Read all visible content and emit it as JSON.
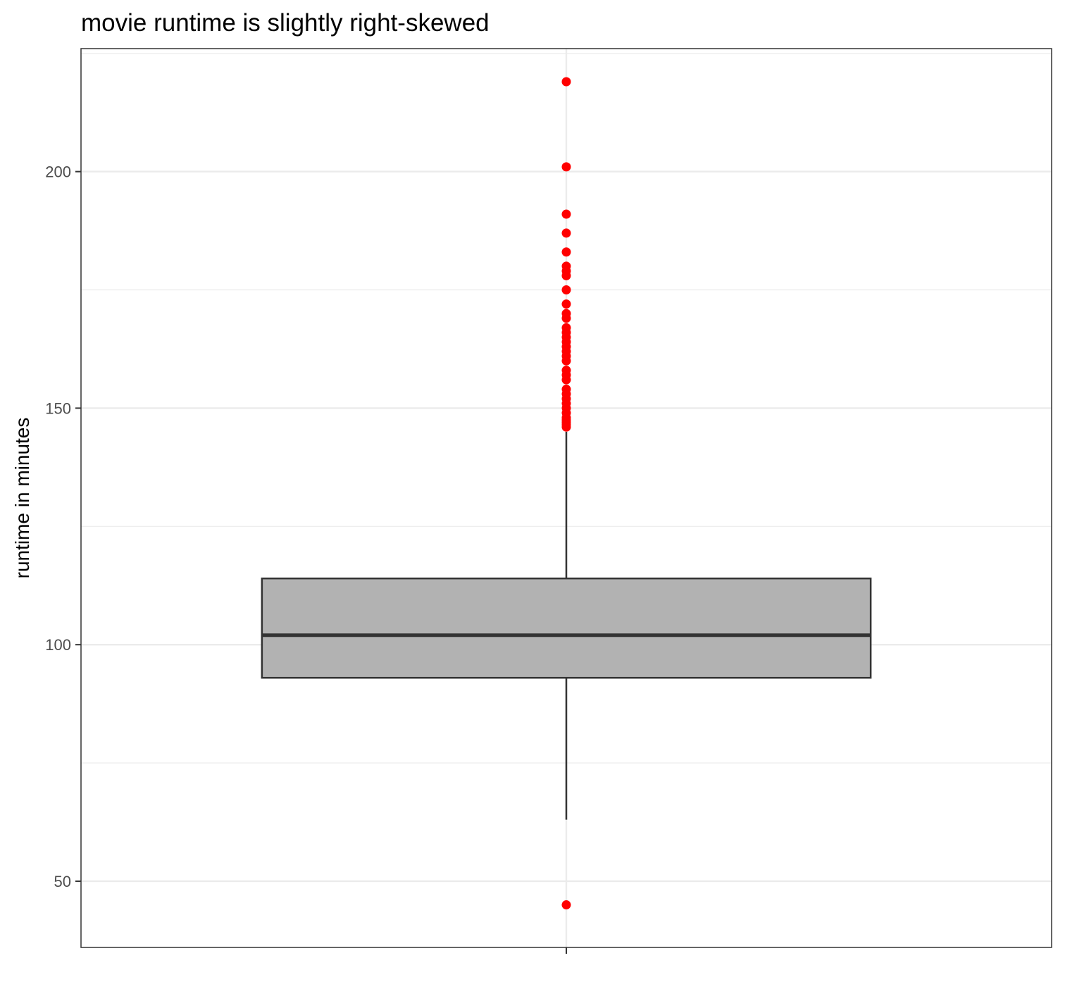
{
  "chart_data": {
    "type": "boxplot",
    "title": "movie runtime is slightly right-skewed",
    "xlabel": "",
    "ylabel": "runtime in minutes",
    "ylim": [
      36,
      226
    ],
    "y_ticks": [
      50,
      100,
      150,
      200
    ],
    "y_tick_labels": [
      "50",
      "100",
      "150",
      "200"
    ],
    "grid": true,
    "box": {
      "q1": 93,
      "median": 102,
      "q3": 114,
      "whisker_low": 63,
      "whisker_high": 145
    },
    "outliers": [
      45,
      146,
      146.5,
      147,
      147.5,
      148,
      149,
      150,
      151,
      152,
      153,
      154,
      156,
      157,
      158,
      160,
      161,
      162,
      163,
      164,
      165,
      166,
      167,
      169,
      170,
      172,
      175,
      178,
      179,
      180,
      183,
      187,
      191,
      201,
      219
    ],
    "colors": {
      "box_fill": "#b2b2b2",
      "box_line": "#333333",
      "outlier": "#ff0000",
      "grid": "#ebebeb",
      "panel_border": "#333333"
    }
  }
}
